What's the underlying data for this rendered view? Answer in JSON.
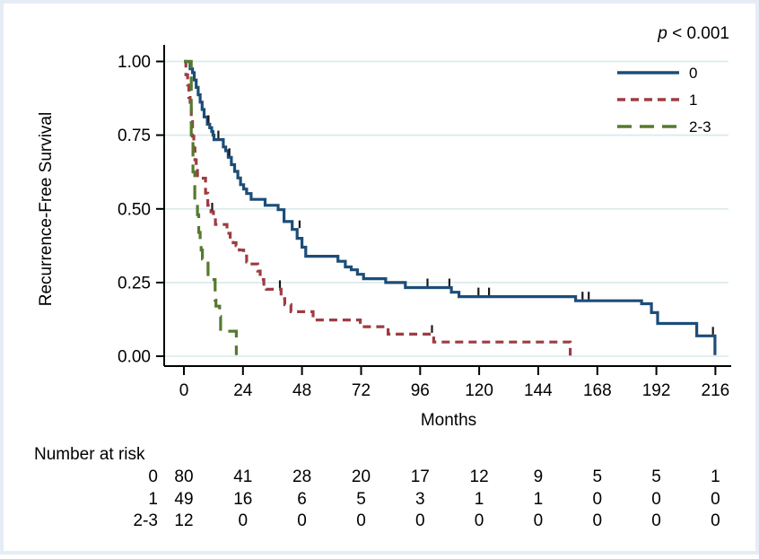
{
  "figure": {
    "p_italic": "p",
    "p_rest": " < 0.001",
    "x_label": "Months",
    "y_label": "Recurrence-Free Survival",
    "risk_table": {
      "title": "Number at risk",
      "rows": [
        {
          "label": "0",
          "counts": [
            80,
            41,
            28,
            20,
            17,
            12,
            9,
            5,
            5,
            1
          ]
        },
        {
          "label": "1",
          "counts": [
            49,
            16,
            6,
            5,
            3,
            1,
            1,
            0,
            0,
            0
          ]
        },
        {
          "label": "2-3",
          "counts": [
            12,
            0,
            0,
            0,
            0,
            0,
            0,
            0,
            0,
            0
          ]
        }
      ]
    },
    "colors": {
      "axis": "#000000",
      "gridline": "#dcebeb",
      "border": "#e6ecf5",
      "censor": "#1a1a1a"
    }
  },
  "chart_data": {
    "type": "line",
    "subtype": "kaplan-meier-step",
    "title": "",
    "xlabel": "Months",
    "ylabel": "Recurrence-Free Survival",
    "annotation": "p < 0.001",
    "xlim": [
      0,
      216
    ],
    "ylim": [
      0,
      1
    ],
    "grid": "horizontal",
    "legend_position": "top-right",
    "x_ticks": [
      0,
      24,
      48,
      72,
      96,
      120,
      144,
      168,
      192,
      216
    ],
    "y_ticks": [
      {
        "label": "0.00",
        "v": 0
      },
      {
        "label": "0.25",
        "v": 0.25
      },
      {
        "label": "0.50",
        "v": 0.5
      },
      {
        "label": "0.75",
        "v": 0.75
      },
      {
        "label": "1.00",
        "v": 1
      }
    ],
    "series": [
      {
        "name": "0",
        "color": "#1c4d78",
        "dash": "solid",
        "points": [
          [
            0,
            1
          ],
          [
            2.5,
            0.975
          ],
          [
            3.5,
            0.962
          ],
          [
            4.2,
            0.937
          ],
          [
            5,
            0.912
          ],
          [
            5.8,
            0.887
          ],
          [
            6.6,
            0.862
          ],
          [
            7.4,
            0.837
          ],
          [
            8.2,
            0.812
          ],
          [
            9.5,
            0.787
          ],
          [
            10.5,
            0.775
          ],
          [
            11.3,
            0.762
          ],
          [
            11.8,
            0.75
          ],
          [
            12.2,
            0.735
          ],
          [
            16,
            0.71
          ],
          [
            17,
            0.697
          ],
          [
            18,
            0.675
          ],
          [
            19.3,
            0.65
          ],
          [
            20.6,
            0.627
          ],
          [
            21.9,
            0.605
          ],
          [
            23,
            0.582
          ],
          [
            24.3,
            0.567
          ],
          [
            25.5,
            0.552
          ],
          [
            27.3,
            0.532
          ],
          [
            33,
            0.512
          ],
          [
            38.3,
            0.497
          ],
          [
            40.7,
            0.457
          ],
          [
            44,
            0.43
          ],
          [
            46,
            0.4
          ],
          [
            48,
            0.37
          ],
          [
            49.5,
            0.339
          ],
          [
            62.6,
            0.322
          ],
          [
            65.6,
            0.303
          ],
          [
            68,
            0.293
          ],
          [
            70.5,
            0.278
          ],
          [
            73,
            0.263
          ],
          [
            82,
            0.25
          ],
          [
            90,
            0.233
          ],
          [
            108.7,
            0.217
          ],
          [
            111.8,
            0.202
          ],
          [
            159.2,
            0.188
          ],
          [
            186,
            0.178
          ],
          [
            190,
            0.148
          ],
          [
            192.5,
            0.111
          ],
          [
            208.4,
            0.069
          ],
          [
            215.8,
            0.004
          ]
        ],
        "censors": [
          [
            10,
            0.787
          ],
          [
            14,
            0.735
          ],
          [
            18.5,
            0.675
          ],
          [
            47,
            0.43
          ],
          [
            99,
            0.233
          ],
          [
            107.9,
            0.233
          ],
          [
            119.7,
            0.202
          ],
          [
            124,
            0.202
          ],
          [
            162,
            0.188
          ],
          [
            164.5,
            0.188
          ],
          [
            215,
            0.069
          ]
        ]
      },
      {
        "name": "1",
        "color": "#9e3c42",
        "dash": "short",
        "points": [
          [
            0,
            1
          ],
          [
            0.8,
            0.955
          ],
          [
            1.5,
            0.92
          ],
          [
            2,
            0.878
          ],
          [
            2.5,
            0.84
          ],
          [
            3,
            0.796
          ],
          [
            3.5,
            0.746
          ],
          [
            4,
            0.706
          ],
          [
            4.5,
            0.666
          ],
          [
            5,
            0.635
          ],
          [
            5.5,
            0.604
          ],
          [
            8.8,
            0.553
          ],
          [
            9.7,
            0.512
          ],
          [
            11,
            0.49
          ],
          [
            12,
            0.468
          ],
          [
            12.8,
            0.447
          ],
          [
            17.5,
            0.417
          ],
          [
            18.8,
            0.396
          ],
          [
            20,
            0.385
          ],
          [
            21.2,
            0.375
          ],
          [
            22.5,
            0.36
          ],
          [
            24.3,
            0.34
          ],
          [
            25.5,
            0.32
          ],
          [
            26.2,
            0.313
          ],
          [
            30,
            0.289
          ],
          [
            31,
            0.26
          ],
          [
            32.5,
            0.233
          ],
          [
            33.5,
            0.227
          ],
          [
            39.5,
            0.195
          ],
          [
            41,
            0.175
          ],
          [
            43.5,
            0.151
          ],
          [
            52.5,
            0.123
          ],
          [
            71.7,
            0.1
          ],
          [
            83,
            0.075
          ],
          [
            101.5,
            0.048
          ],
          [
            157,
            0.002
          ]
        ],
        "censors": [
          [
            11.5,
            0.49
          ],
          [
            39,
            0.227
          ],
          [
            100.8,
            0.075
          ]
        ]
      },
      {
        "name": "2-3",
        "color": "#567a2e",
        "dash": "long",
        "points": [
          [
            0,
            1
          ],
          [
            3,
            0.75
          ],
          [
            3.7,
            0.625
          ],
          [
            4.4,
            0.52
          ],
          [
            5.5,
            0.48
          ],
          [
            6,
            0.42
          ],
          [
            6.6,
            0.39
          ],
          [
            7,
            0.36
          ],
          [
            7.5,
            0.33
          ],
          [
            9.8,
            0.26
          ],
          [
            12.7,
            0.19
          ],
          [
            13,
            0.17
          ],
          [
            14.5,
            0.135
          ],
          [
            14.9,
            0.085
          ],
          [
            21.3,
            0.004
          ]
        ],
        "censors": []
      }
    ]
  }
}
